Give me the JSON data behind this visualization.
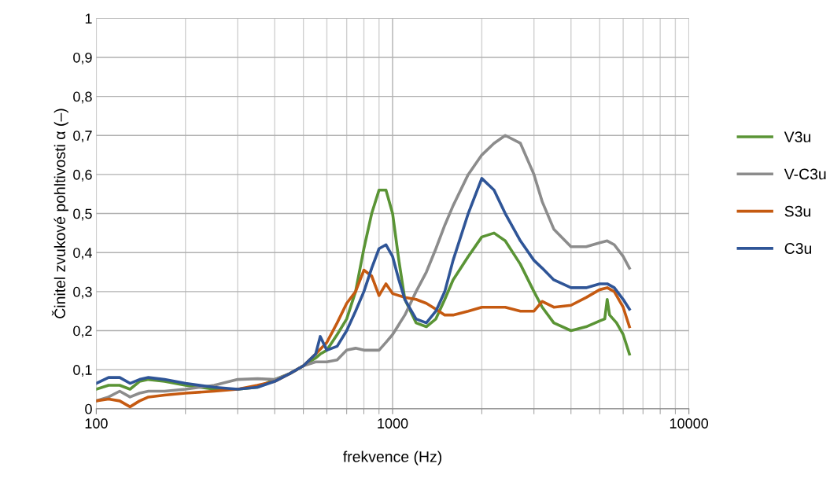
{
  "chart_data": {
    "type": "line",
    "xlabel": "frekvence (Hz)",
    "ylabel": "Činitel zvukové pohltivosti α (–)",
    "log": "x",
    "grid": true,
    "legend": "right",
    "marker": "none",
    "line_style": "solid",
    "xlim": [
      100,
      10000
    ],
    "xticks": [
      100,
      1000,
      10000
    ],
    "ylim": [
      0,
      1
    ],
    "yticks": [
      0,
      {
        "value": 0.1,
        "label": "0,1"
      },
      {
        "value": 0.2,
        "label": "0,2"
      },
      {
        "value": 0.3,
        "label": "0,3"
      },
      {
        "value": 0.4,
        "label": "0,4"
      },
      {
        "value": 0.5,
        "label": "0,5"
      },
      {
        "value": 0.6,
        "label": "0,6"
      },
      {
        "value": 0.7,
        "label": "0,7"
      },
      {
        "value": 0.8,
        "label": "0,8"
      },
      {
        "value": 0.9,
        "label": "0,9"
      },
      1
    ],
    "series": [
      {
        "name": "V3u",
        "color": "#5a9435",
        "x": [
          100,
          110,
          120,
          130,
          140,
          150,
          170,
          200,
          250,
          300,
          350,
          400,
          450,
          500,
          550,
          570,
          600,
          650,
          700,
          750,
          800,
          850,
          900,
          950,
          1000,
          1050,
          1100,
          1200,
          1300,
          1400,
          1500,
          1600,
          1800,
          2000,
          2200,
          2400,
          2700,
          3000,
          3200,
          3500,
          4000,
          4500,
          5000,
          5200,
          5300,
          5400,
          5700,
          6000,
          6300
        ],
        "values": [
          0.05,
          0.06,
          0.06,
          0.05,
          0.07,
          0.075,
          0.07,
          0.06,
          0.05,
          0.05,
          0.055,
          0.075,
          0.09,
          0.11,
          0.13,
          0.14,
          0.15,
          0.19,
          0.23,
          0.3,
          0.41,
          0.5,
          0.56,
          0.56,
          0.5,
          0.38,
          0.28,
          0.22,
          0.21,
          0.23,
          0.28,
          0.33,
          0.39,
          0.44,
          0.45,
          0.43,
          0.37,
          0.3,
          0.26,
          0.22,
          0.2,
          0.21,
          0.225,
          0.23,
          0.28,
          0.24,
          0.22,
          0.19,
          0.14
        ]
      },
      {
        "name": "V-C3u",
        "color": "#8c8c8c",
        "x": [
          100,
          110,
          120,
          130,
          140,
          150,
          170,
          200,
          250,
          300,
          350,
          400,
          450,
          500,
          550,
          570,
          600,
          650,
          700,
          750,
          800,
          850,
          900,
          950,
          1000,
          1100,
          1200,
          1300,
          1400,
          1500,
          1600,
          1800,
          2000,
          2200,
          2400,
          2700,
          3000,
          3200,
          3500,
          4000,
          4500,
          5000,
          5300,
          5600,
          6000,
          6300
        ],
        "values": [
          0.02,
          0.03,
          0.045,
          0.03,
          0.04,
          0.045,
          0.045,
          0.05,
          0.06,
          0.075,
          0.077,
          0.075,
          0.09,
          0.11,
          0.12,
          0.12,
          0.12,
          0.125,
          0.15,
          0.155,
          0.15,
          0.15,
          0.15,
          0.17,
          0.19,
          0.24,
          0.3,
          0.35,
          0.41,
          0.47,
          0.52,
          0.6,
          0.65,
          0.68,
          0.7,
          0.68,
          0.6,
          0.53,
          0.46,
          0.415,
          0.415,
          0.425,
          0.43,
          0.42,
          0.39,
          0.36
        ]
      },
      {
        "name": "S3u",
        "color": "#c55a11",
        "x": [
          100,
          110,
          120,
          130,
          140,
          150,
          170,
          200,
          250,
          300,
          350,
          400,
          450,
          500,
          550,
          600,
          650,
          700,
          750,
          800,
          850,
          900,
          950,
          1000,
          1100,
          1200,
          1300,
          1400,
          1500,
          1600,
          1800,
          2000,
          2200,
          2400,
          2700,
          3000,
          3200,
          3500,
          4000,
          4500,
          5000,
          5300,
          5600,
          6000,
          6300
        ],
        "values": [
          0.02,
          0.025,
          0.02,
          0.005,
          0.02,
          0.03,
          0.035,
          0.04,
          0.045,
          0.05,
          0.06,
          0.07,
          0.09,
          0.11,
          0.14,
          0.17,
          0.22,
          0.27,
          0.3,
          0.355,
          0.34,
          0.29,
          0.32,
          0.295,
          0.285,
          0.28,
          0.27,
          0.255,
          0.24,
          0.24,
          0.25,
          0.26,
          0.26,
          0.26,
          0.25,
          0.25,
          0.275,
          0.26,
          0.265,
          0.285,
          0.305,
          0.31,
          0.3,
          0.26,
          0.21
        ]
      },
      {
        "name": "C3u",
        "color": "#2f5597",
        "x": [
          100,
          110,
          120,
          130,
          140,
          150,
          170,
          200,
          250,
          300,
          350,
          400,
          450,
          500,
          550,
          570,
          600,
          650,
          700,
          750,
          800,
          850,
          900,
          950,
          1000,
          1050,
          1100,
          1200,
          1300,
          1400,
          1500,
          1600,
          1800,
          2000,
          2200,
          2400,
          2700,
          3000,
          3200,
          3500,
          4000,
          4500,
          5000,
          5300,
          5600,
          6000,
          6300
        ],
        "values": [
          0.065,
          0.08,
          0.08,
          0.065,
          0.075,
          0.08,
          0.075,
          0.065,
          0.055,
          0.05,
          0.055,
          0.07,
          0.09,
          0.11,
          0.14,
          0.185,
          0.15,
          0.16,
          0.2,
          0.25,
          0.3,
          0.36,
          0.41,
          0.42,
          0.39,
          0.33,
          0.28,
          0.23,
          0.22,
          0.25,
          0.3,
          0.38,
          0.5,
          0.59,
          0.56,
          0.5,
          0.43,
          0.38,
          0.36,
          0.33,
          0.31,
          0.31,
          0.32,
          0.32,
          0.31,
          0.28,
          0.255
        ]
      }
    ]
  }
}
